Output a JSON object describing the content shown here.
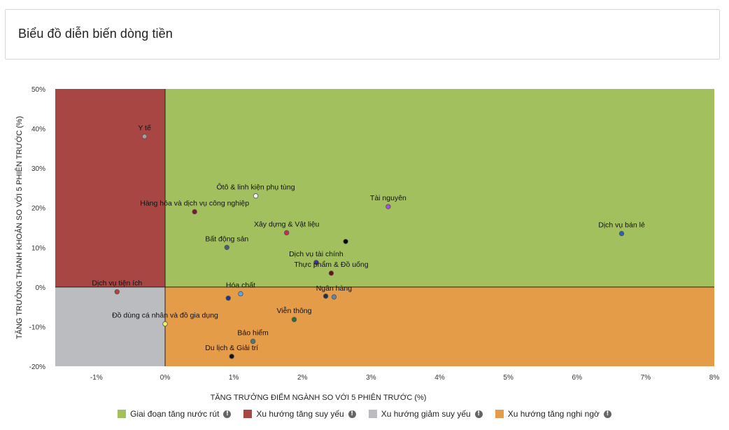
{
  "header": {
    "title": "Biểu đồ diễn biến dòng tiền"
  },
  "legend": [
    {
      "label": "Giai đoạn tăng nước rút",
      "color": "#a3c05f",
      "icon": "info-icon"
    },
    {
      "label": "Xu hướng tăng suy yếu",
      "color": "#a84644",
      "icon": "info-icon"
    },
    {
      "label": "Xu hướng giảm suy yếu",
      "color": "#bbbcc0",
      "icon": "info-icon"
    },
    {
      "label": "Xu hướng tăng nghi ngờ",
      "color": "#e59c49",
      "icon": "info-icon"
    }
  ],
  "chart_data": {
    "type": "scatter",
    "title": "",
    "xlabel": "TĂNG TRƯỞNG ĐIỂM NGÀNH SO VỚI 5 PHIÊN TRƯỚC (%)",
    "ylabel": "TĂNG TRƯỞNG THANH KHOẢN SO VỚI 5 PHIÊN TRƯỚC (%)",
    "xlim": [
      -1.6,
      8
    ],
    "ylim": [
      -20,
      50
    ],
    "xticks": [
      -1,
      0,
      1,
      2,
      3,
      4,
      5,
      6,
      7,
      8
    ],
    "yticks": [
      -20,
      -10,
      0,
      10,
      20,
      30,
      40,
      50
    ],
    "xtick_labels": [
      "-1%",
      "0%",
      "1%",
      "2%",
      "3%",
      "4%",
      "5%",
      "6%",
      "7%",
      "8%"
    ],
    "ytick_labels": [
      "-20%",
      "-10%",
      "0%",
      "10%",
      "20%",
      "30%",
      "40%",
      "50%"
    ],
    "quadrants": [
      {
        "name": "Giai đoạn tăng nước rút",
        "x": [
          0,
          8
        ],
        "y": [
          0,
          50
        ],
        "color": "#a3c05f"
      },
      {
        "name": "Xu hướng tăng suy yếu",
        "x": [
          -1.6,
          0
        ],
        "y": [
          0,
          50
        ],
        "color": "#a84644"
      },
      {
        "name": "Xu hướng giảm suy yếu",
        "x": [
          -1.6,
          0
        ],
        "y": [
          -20,
          0
        ],
        "color": "#bbbcc0"
      },
      {
        "name": "Xu hướng tăng nghi ngờ",
        "x": [
          0,
          8
        ],
        "y": [
          -20,
          0
        ],
        "color": "#e59c49"
      }
    ],
    "points": [
      {
        "label": "Y tế",
        "x": -0.3,
        "y": 38,
        "color": "#a1a1a1"
      },
      {
        "label": "Ôtô & linh kiện phụ tùng",
        "x": 1.32,
        "y": 23,
        "color": "#f2f2f2"
      },
      {
        "label": "Hàng hóa và dịch vụ công nghiệp",
        "x": 0.43,
        "y": 19,
        "color": "#7a1630"
      },
      {
        "label": "Tài nguyên",
        "x": 3.25,
        "y": 20.3,
        "color": "#a44fd0"
      },
      {
        "label": "Dịch vụ bán lẻ",
        "x": 6.65,
        "y": 13.5,
        "color": "#2f5fb0"
      },
      {
        "label": "Xây dựng & Vật liệu",
        "x": 1.77,
        "y": 13.7,
        "color": "#c0304f"
      },
      {
        "label": "Bất động sản",
        "x": 0.9,
        "y": 10,
        "color": "#4f5a6e"
      },
      {
        "label": "",
        "x": 2.63,
        "y": 11.5,
        "color": "#000000"
      },
      {
        "label": "Dịch vụ tài chính",
        "x": 2.2,
        "y": 6.2,
        "color": "#3b3b9e"
      },
      {
        "label": "Thực phẩm & Đồ uống",
        "x": 2.42,
        "y": 3.5,
        "color": "#6b1111"
      },
      {
        "label": "Dịch vụ tiện ích",
        "x": -0.7,
        "y": -1.2,
        "color": "#b54141"
      },
      {
        "label": "Hóa chất",
        "x": 1.1,
        "y": -1.7,
        "color": "#55a9e6"
      },
      {
        "label": "",
        "x": 0.92,
        "y": -2.8,
        "color": "#253580"
      },
      {
        "label": "Ngân hàng",
        "x": 2.46,
        "y": -2.5,
        "color": "#6484a8"
      },
      {
        "label": "",
        "x": 2.34,
        "y": -2.3,
        "color": "#20304a"
      },
      {
        "label": "Viễn thông",
        "x": 1.88,
        "y": -8.2,
        "color": "#2b6b3c"
      },
      {
        "label": "Đồ dùng cá nhân và đồ gia dụng",
        "x": 0,
        "y": -9.3,
        "color": "#f1f06a"
      },
      {
        "label": "Bảo hiểm",
        "x": 1.28,
        "y": -13.7,
        "color": "#53785e"
      },
      {
        "label": "Du lịch & Giải trí",
        "x": 0.97,
        "y": -17.5,
        "color": "#111111"
      }
    ]
  }
}
